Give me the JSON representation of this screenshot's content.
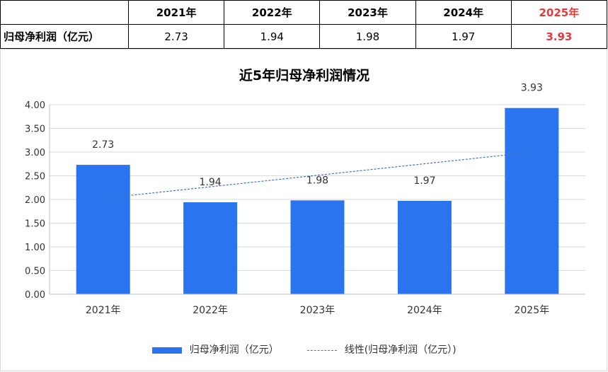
{
  "table": {
    "corner": "",
    "row_label": "归母净利润（亿元）",
    "years": [
      "2021年",
      "2022年",
      "2023年",
      "2024年",
      "2025年"
    ],
    "values": [
      "2.73",
      "1.94",
      "1.98",
      "1.97",
      "3.93"
    ],
    "highlight_color": "#e03a3a"
  },
  "chart_data": {
    "type": "bar",
    "title": "近5年归母净利润情况",
    "categories": [
      "2021年",
      "2022年",
      "2023年",
      "2024年",
      "2025年"
    ],
    "series": [
      {
        "name": "归母净利润（亿元）",
        "values": [
          2.73,
          1.94,
          1.98,
          1.97,
          3.93
        ],
        "color": "#2b74f0"
      }
    ],
    "trendline": {
      "name": "线性(归母净利润（亿元）)",
      "type": "linear",
      "style": "dashed",
      "color": "#4472c4"
    },
    "data_labels": [
      "2.73",
      "1.94",
      "1.98",
      "1.97",
      "3.93"
    ],
    "y_ticks": [
      "0.00",
      "0.50",
      "1.00",
      "1.50",
      "2.00",
      "2.50",
      "3.00",
      "3.50",
      "4.00"
    ],
    "ylim": [
      0,
      4
    ],
    "grid": true,
    "legend_position": "bottom"
  }
}
